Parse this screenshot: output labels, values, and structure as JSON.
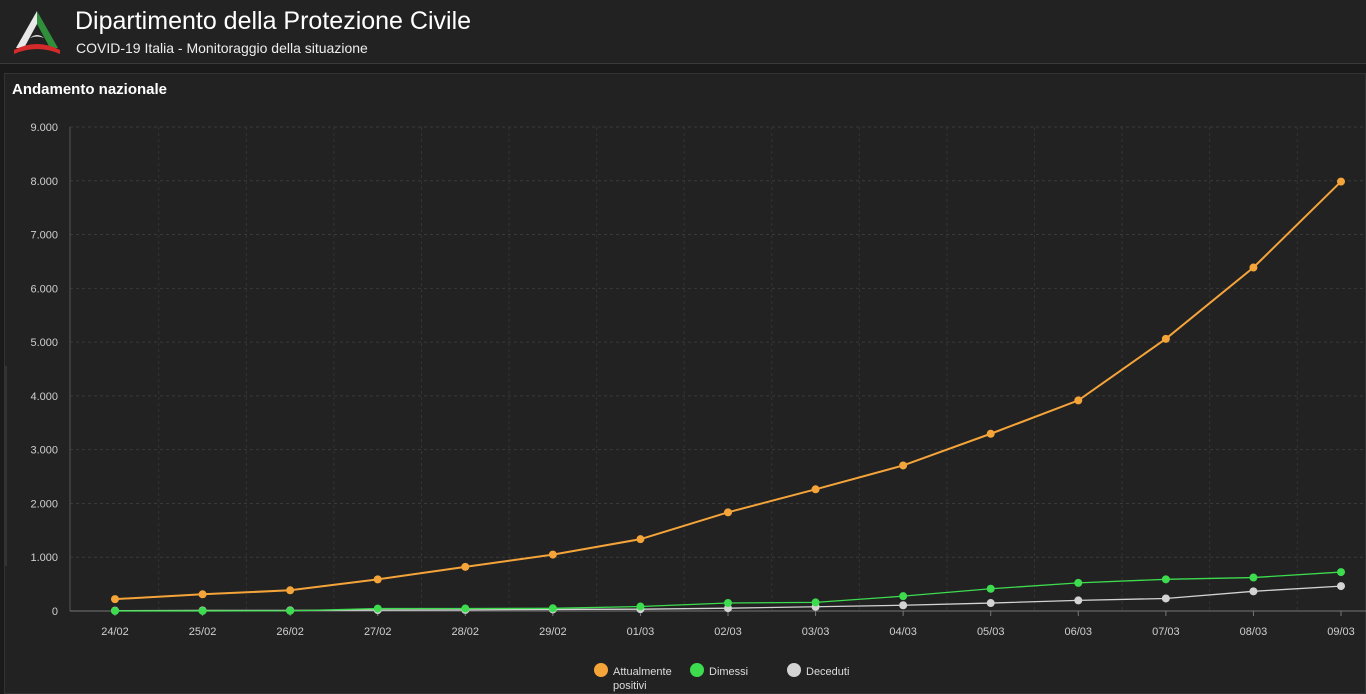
{
  "header": {
    "title": "Dipartimento della Protezione Civile",
    "subtitle": "COVID-19 Italia - Monitoraggio della situazione"
  },
  "panel": {
    "title": "Andamento nazionale"
  },
  "colors": {
    "attualmente_positivi": "#f5a43a",
    "dimessi": "#3ddc4f",
    "deceduti": "#d3d3d3"
  },
  "chart_data": {
    "type": "line",
    "title": "",
    "xlabel": "",
    "ylabel": "",
    "categories": [
      "24/02",
      "25/02",
      "26/02",
      "27/02",
      "28/02",
      "29/02",
      "01/03",
      "02/03",
      "03/03",
      "04/03",
      "05/03",
      "06/03",
      "07/03",
      "08/03",
      "09/03"
    ],
    "ylim": [
      0,
      9000
    ],
    "yticks": [
      0,
      1000,
      2000,
      3000,
      4000,
      5000,
      6000,
      7000,
      8000,
      9000
    ],
    "ytick_labels": [
      "0",
      "1.000",
      "2.000",
      "3.000",
      "4.000",
      "5.000",
      "6.000",
      "7.000",
      "8.000",
      "9.000"
    ],
    "grid": true,
    "legend_position": "bottom",
    "series": [
      {
        "name": "Attualmente positivi",
        "color": "#f5a43a",
        "values": [
          221,
          311,
          385,
          588,
          821,
          1049,
          1336,
          1835,
          2263,
          2706,
          3296,
          3916,
          5061,
          6387,
          7985
        ]
      },
      {
        "name": "Dimessi",
        "color": "#3ddc4f",
        "values": [
          1,
          1,
          3,
          45,
          46,
          50,
          83,
          149,
          160,
          276,
          414,
          523,
          589,
          622,
          724
        ]
      },
      {
        "name": "Deceduti",
        "color": "#d3d3d3",
        "values": [
          7,
          10,
          12,
          17,
          21,
          29,
          34,
          52,
          79,
          107,
          148,
          197,
          233,
          366,
          463
        ]
      }
    ],
    "legend": [
      {
        "line1": "Attualmente",
        "line2": "positivi"
      },
      {
        "line1": "Dimessi",
        "line2": ""
      },
      {
        "line1": "Deceduti",
        "line2": ""
      }
    ]
  }
}
